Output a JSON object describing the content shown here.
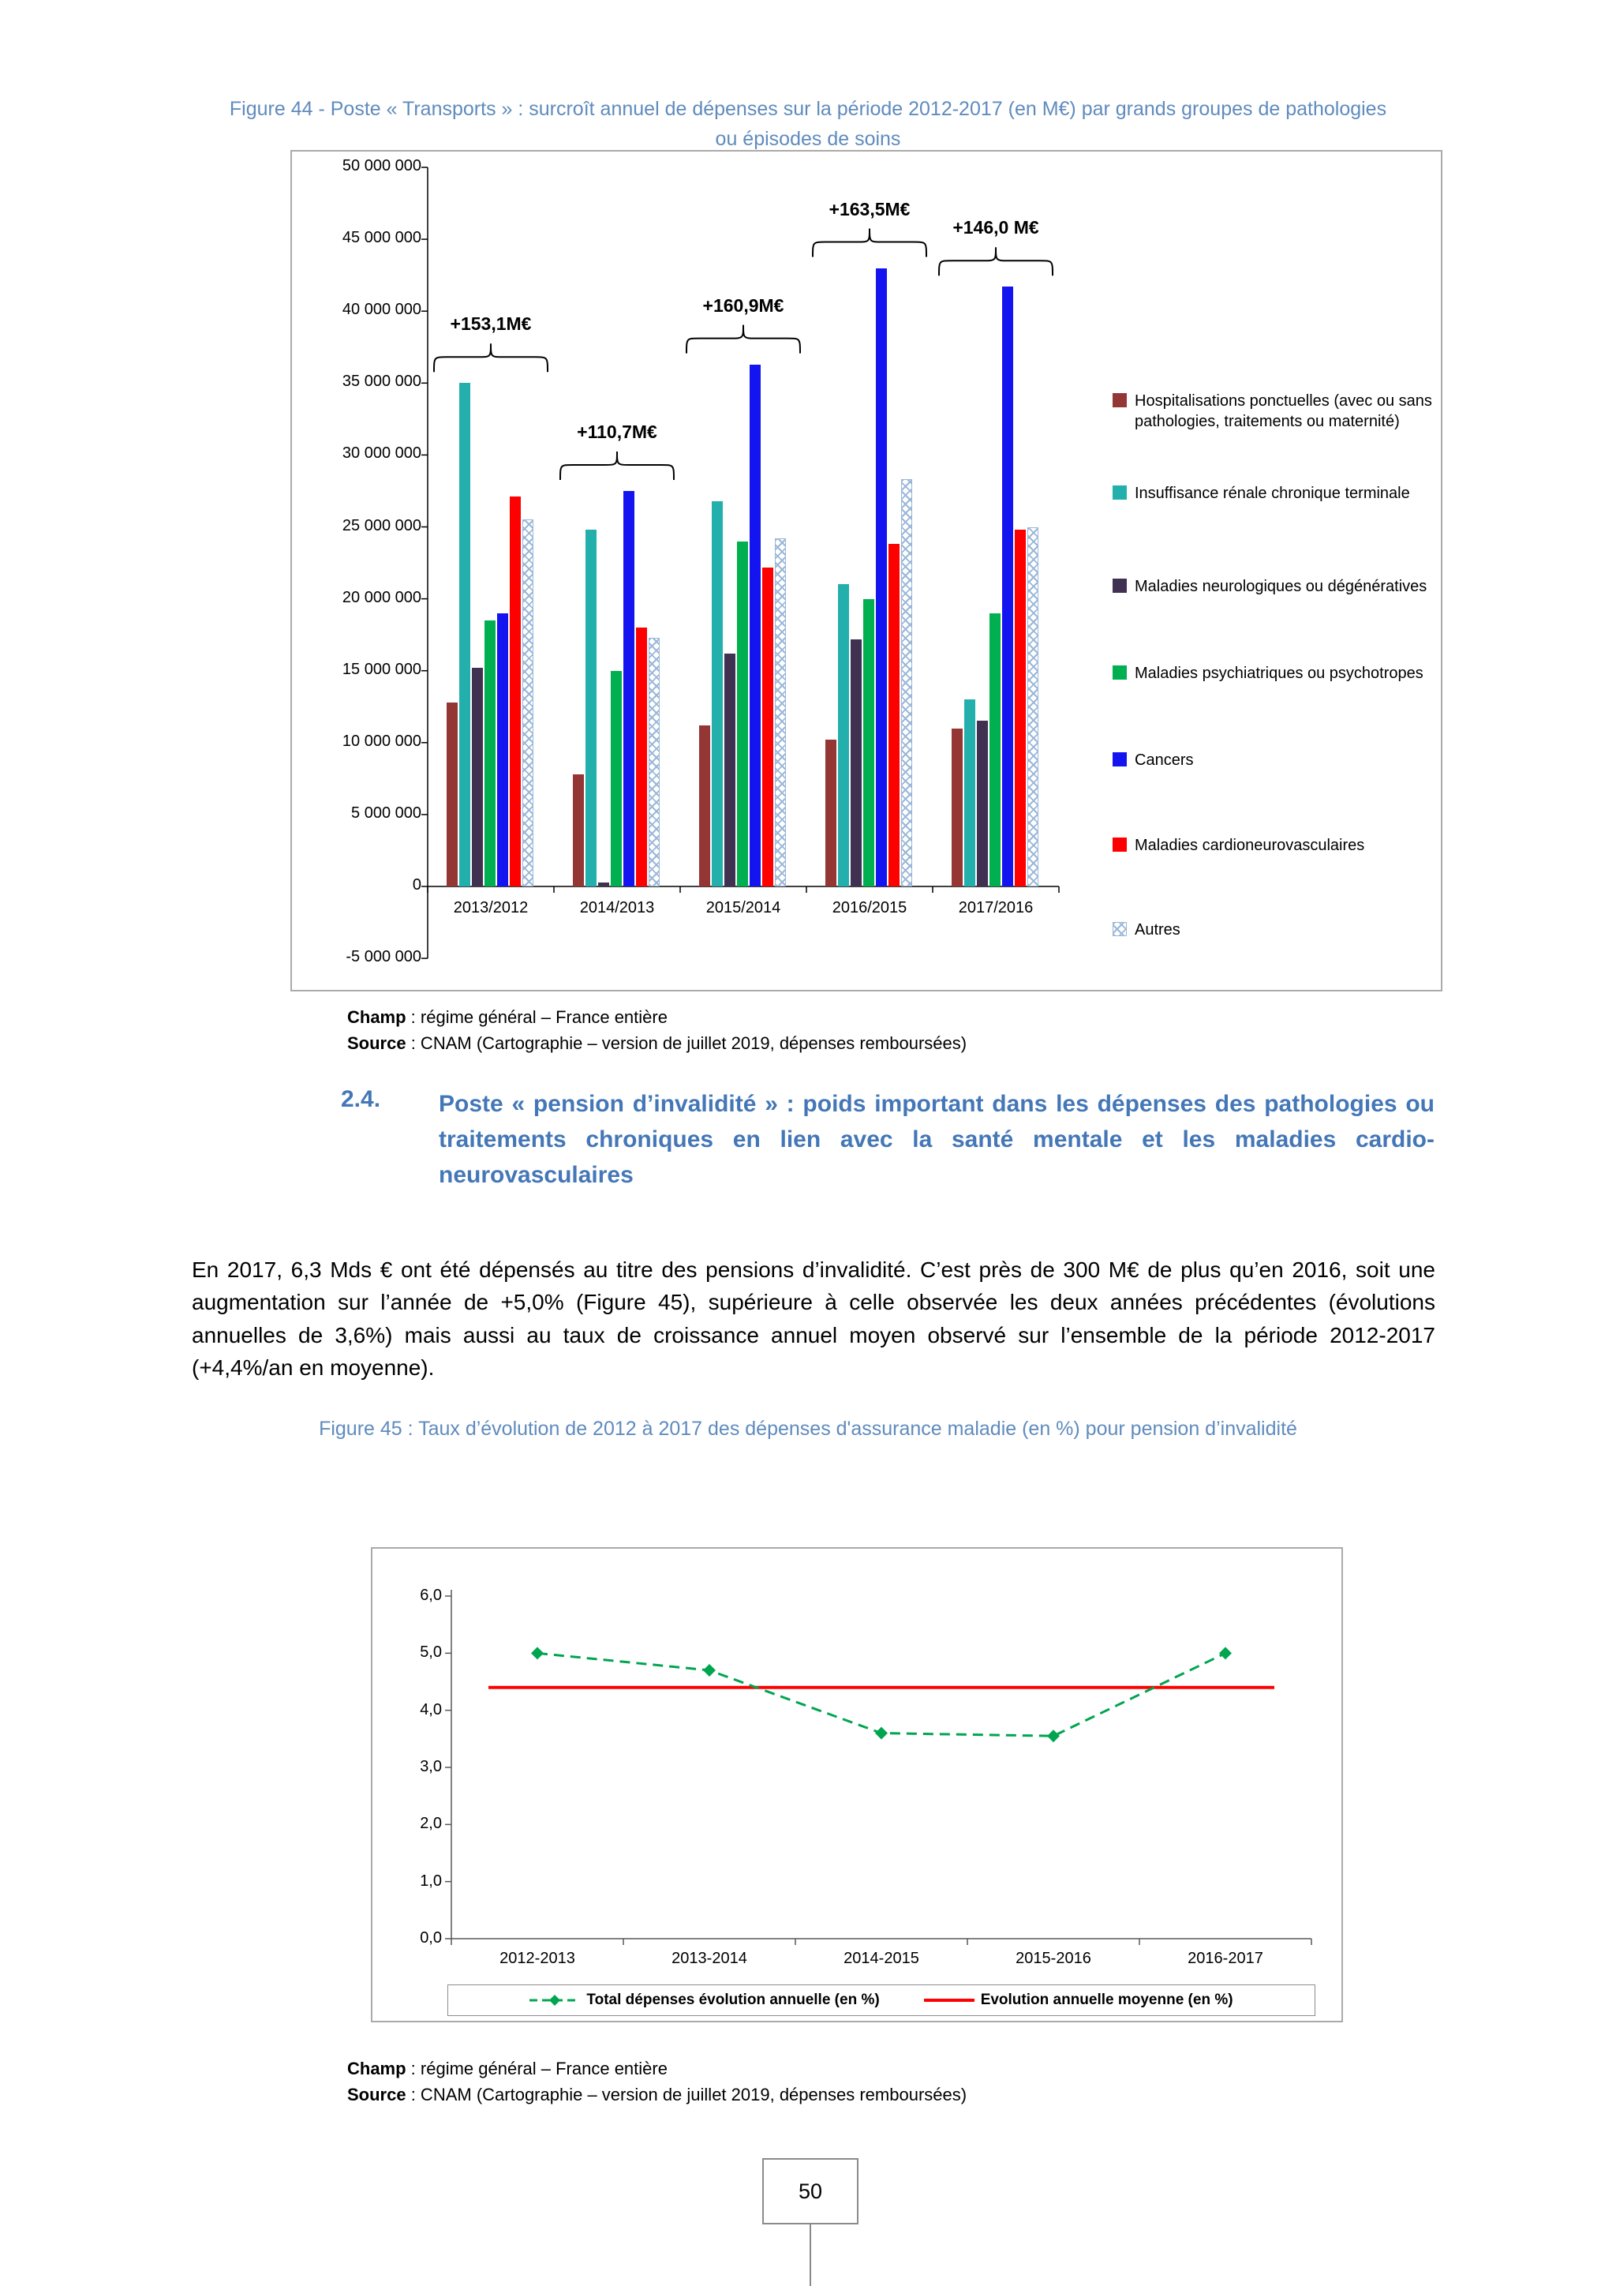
{
  "page": {
    "number": "50"
  },
  "figure44": {
    "caption": "Figure 44 - Poste « Transports » : surcroît annuel de dépenses sur la période 2012-2017 (en M€) par grands groupes de pathologies ou épisodes de soins",
    "champ_label": "Champ",
    "champ_text": " : régime général – France entière",
    "source_label": "Source",
    "source_text": " : CNAM (Cartographie – version de juillet 2019, dépenses remboursées)"
  },
  "section_24": {
    "number": "2.4.",
    "title": "Poste « pension d’invalidité » : poids important dans les dépenses des pathologies ou traitements chroniques en lien avec la santé mentale et les maladies cardio-neurovasculaires"
  },
  "paragraph": "En 2017, 6,3 Mds € ont été dépensés au titre des pensions d’invalidité. C’est près de 300 M€ de plus qu’en 2016, soit une augmentation sur l’année de +5,0% (Figure 45), supérieure à celle observée les deux années précédentes (évolutions annuelles de 3,6%) mais aussi au taux de croissance annuel moyen observé sur l’ensemble de la période 2012-2017 (+4,4%/an en moyenne).",
  "figure45": {
    "caption": "Figure 45 : Taux d’évolution de 2012 à 2017 des dépenses d'assurance maladie (en %) pour pension d’invalidité",
    "champ_label": "Champ",
    "champ_text": " : régime général – France entière",
    "source_label": "Source",
    "source_text": " : CNAM (Cartographie – version de juillet 2019, dépenses remboursées)"
  },
  "chart_data": [
    {
      "type": "bar",
      "title": "Poste « Transports » : surcroît annuel de dépenses sur la période 2012-2017 (en M€) par grands groupes de pathologies ou épisodes de soins",
      "xlabel": "",
      "ylabel": "",
      "ylim": [
        -5000000,
        50000000
      ],
      "grid": false,
      "legend_position": "right",
      "categories": [
        "2013/2012",
        "2014/2013",
        "2015/2014",
        "2016/2015",
        "2017/2016"
      ],
      "ytick_labels": [
        "50 000 000",
        "45 000 000",
        "40 000 000",
        "35 000 000",
        "30 000 000",
        "25 000 000",
        "20 000 000",
        "15 000 000",
        "10 000 000",
        "5 000 000",
        "0",
        "-5 000 000"
      ],
      "annotations": [
        "+153,1M€",
        "+110,7M€",
        "+160,9M€",
        "+163,5M€",
        "+146,0 M€"
      ],
      "series": [
        {
          "name": "Hospitalisations ponctuelles (avec ou sans pathologies, traitements ou maternité)",
          "color": "#943634",
          "values": [
            12800000,
            7800000,
            11200000,
            10200000,
            11000000
          ]
        },
        {
          "name": "Insuffisance rénale chronique terminale",
          "color": "#23b0ac",
          "values": [
            35000000,
            24800000,
            26800000,
            21000000,
            13000000
          ]
        },
        {
          "name": "Maladies neurologiques ou dégénératives",
          "color": "#403152",
          "values": [
            15200000,
            300000,
            16200000,
            17200000,
            11500000
          ]
        },
        {
          "name": "Maladies psychiatriques ou psychotropes",
          "color": "#00b050",
          "values": [
            18500000,
            15000000,
            24000000,
            20000000,
            19000000
          ]
        },
        {
          "name": "Cancers",
          "color": "#1414f0",
          "values": [
            19000000,
            27500000,
            36300000,
            43000000,
            41700000
          ]
        },
        {
          "name": "Maladies cardioneurovasculaires",
          "color": "#ff0000",
          "values": [
            27100000,
            18000000,
            22200000,
            23800000,
            24800000
          ]
        },
        {
          "name": "Autres",
          "color": "#8fb4d9",
          "pattern": "crosshatch",
          "values": [
            25500000,
            17300000,
            24200000,
            28300000,
            25000000
          ]
        }
      ]
    },
    {
      "type": "line",
      "title": "Taux d’évolution de 2012 à 2017 des dépenses d'assurance maladie (en %) pour pension d’invalidité",
      "xlabel": "",
      "ylabel": "",
      "ylim": [
        0,
        6
      ],
      "grid": false,
      "legend_position": "bottom",
      "categories": [
        "2012-2013",
        "2013-2014",
        "2014-2015",
        "2015-2016",
        "2016-2017"
      ],
      "ytick_labels": [
        "6,0",
        "5,0",
        "4,0",
        "3,0",
        "2,0",
        "1,0",
        "0,0"
      ],
      "series": [
        {
          "name": "Total dépenses évolution annuelle (en %)",
          "color": "#00a550",
          "style": "dashed",
          "marker": "diamond",
          "values": [
            5.0,
            4.7,
            3.6,
            3.55,
            5.0
          ]
        },
        {
          "name": "Evolution annuelle moyenne (en %)",
          "color": "#ff0000",
          "style": "solid",
          "values": [
            4.4,
            4.4,
            4.4,
            4.4,
            4.4
          ]
        }
      ]
    }
  ]
}
